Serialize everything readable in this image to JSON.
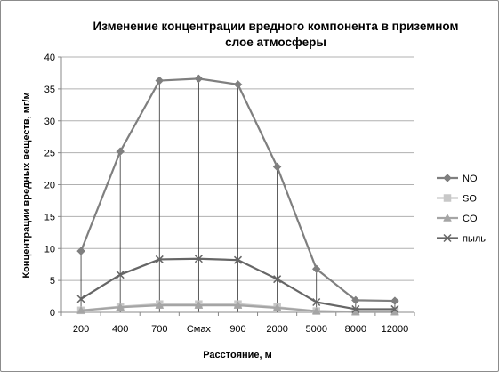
{
  "chart_data": {
    "type": "line",
    "title_line1": "Изменение концентрации вредного компонента в приземном",
    "title_line2": "слое атмосферы",
    "xlabel": "Расстояние, м",
    "ylabel": "Концентрации вредных веществ, мг/м",
    "categories": [
      "200",
      "400",
      "700",
      "Cмах",
      "900",
      "2000",
      "5000",
      "8000",
      "12000"
    ],
    "ylim": [
      0,
      40
    ],
    "yticks": [
      "0",
      "5",
      "10",
      "15",
      "20",
      "25",
      "30",
      "35",
      "40"
    ],
    "grid": "horizontal",
    "legend_position": "right",
    "drop_lines": true,
    "series": [
      {
        "name": "NO",
        "color": "#7f7f7f",
        "marker": "diamond",
        "values": [
          9.6,
          25.2,
          36.3,
          36.6,
          35.7,
          22.8,
          6.8,
          1.9,
          1.8
        ]
      },
      {
        "name": "SO",
        "color": "#c8c8c8",
        "marker": "square",
        "values": [
          0.3,
          0.9,
          1.3,
          1.3,
          1.3,
          0.8,
          0.2,
          0.1,
          0.1
        ]
      },
      {
        "name": "CO",
        "color": "#a5a5a5",
        "marker": "triangle",
        "values": [
          0.3,
          0.8,
          1.1,
          1.1,
          1.1,
          0.7,
          0.2,
          0.05,
          0.05
        ]
      },
      {
        "name": "пыль",
        "color": "#666666",
        "marker": "x",
        "values": [
          2.1,
          5.9,
          8.3,
          8.4,
          8.2,
          5.2,
          1.6,
          0.5,
          0.5
        ]
      }
    ]
  }
}
